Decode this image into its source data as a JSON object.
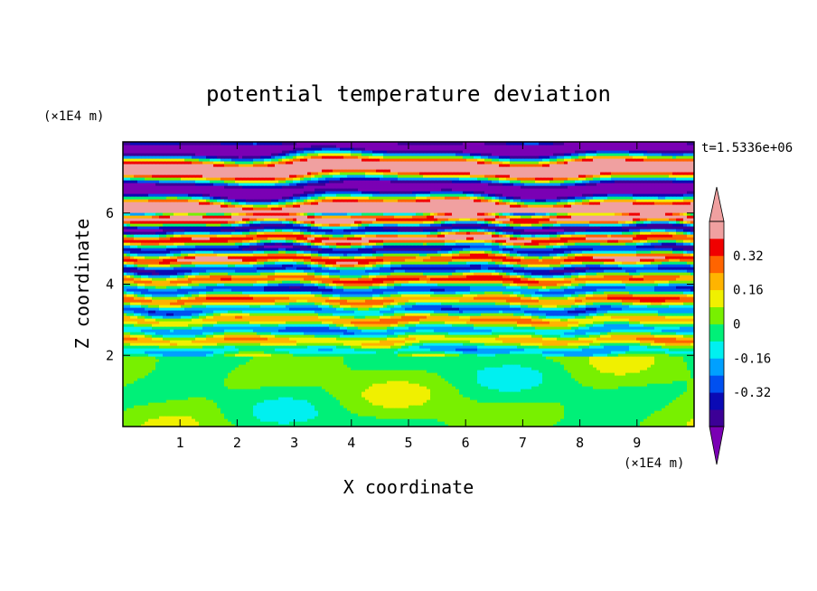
{
  "chart_data": {
    "type": "heatmap",
    "title": "potential temperature deviation",
    "time_label": "t=1.5336e+06",
    "xlabel": "X coordinate",
    "ylabel": "Z coordinate",
    "x_unit": "(×1E4 m)",
    "y_unit": "(×1E4 m)",
    "xlim": [
      0,
      10
    ],
    "ylim": [
      0,
      8
    ],
    "x_ticks": [
      "1",
      "2",
      "3",
      "4",
      "5",
      "6",
      "7",
      "8",
      "9"
    ],
    "y_ticks": [
      "2",
      "4",
      "6"
    ],
    "colorbar": {
      "levels": [
        -0.48,
        -0.4,
        -0.32,
        -0.24,
        -0.16,
        -0.08,
        0,
        0.08,
        0.16,
        0.24,
        0.32,
        0.4,
        0.48
      ],
      "colors": [
        "#7a00b4",
        "#3c0096",
        "#0a0ab4",
        "#0050f0",
        "#00a0ff",
        "#00f0f0",
        "#00f078",
        "#78f000",
        "#f0f000",
        "#ffb400",
        "#ff6400",
        "#f00000",
        "#f0a0a0",
        "#f0a0a0"
      ],
      "tick_labels": [
        "0.32",
        "0.16",
        "0",
        "-0.16",
        "-0.32"
      ],
      "tick_values": [
        0.32,
        0.16,
        0,
        -0.16,
        -0.32
      ]
    },
    "field_description_layers": [
      {
        "z_range": [
          0,
          2
        ],
        "dominant_values": [
          -0.04,
          0.04
        ]
      },
      {
        "z_range": [
          2,
          6
        ],
        "value_range": [
          -0.4,
          0.4
        ]
      },
      {
        "z_range": [
          6,
          8
        ],
        "alternating_extremes": [
          -0.48,
          0.48
        ]
      }
    ]
  }
}
